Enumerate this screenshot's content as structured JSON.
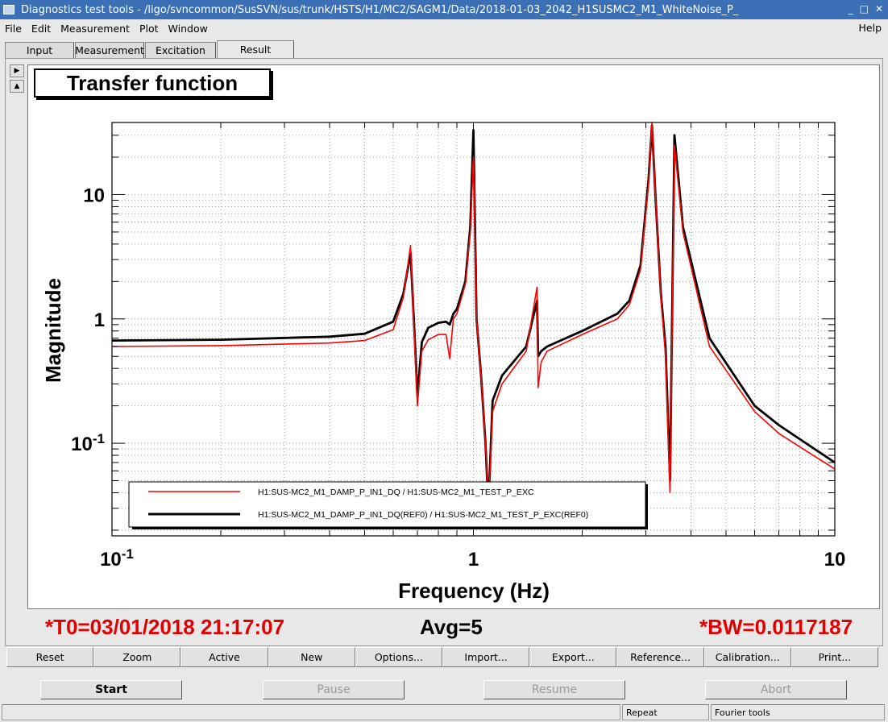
{
  "window": {
    "title": "Diagnostics test tools - /ligo/svncommon/SusSVN/sus/trunk/HSTS/H1/MC2/SAGM1/Data/2018-01-03_2042_H1SUSMC2_M1_WhiteNoise_P_",
    "controls": [
      "_",
      "□",
      "✕"
    ]
  },
  "menu": [
    "File",
    "Edit",
    "Measurement",
    "Plot",
    "Window"
  ],
  "menu_help": "Help",
  "tabs": [
    "Input",
    "Measurement",
    "Excitation",
    "Result"
  ],
  "active_tab": "Result",
  "pad_title": "Transfer function",
  "chart_data": {
    "type": "line",
    "title": "Transfer function",
    "xlabel": "Frequency (Hz)",
    "ylabel": "Magnitude",
    "xscale": "log",
    "yscale": "log",
    "xlim": [
      0.1,
      10
    ],
    "ylim": [
      0.018,
      38
    ],
    "x_ticks": [
      "10^-1",
      "1",
      "10"
    ],
    "y_ticks": [
      "10^-1",
      "1",
      "10"
    ],
    "grid": true,
    "legend_position": "bottom-left",
    "series": [
      {
        "name": "H1:SUS-MC2_M1_DAMP_P_IN1_DQ / H1:SUS-MC2_M1_TEST_P_EXC",
        "color": "#ff0000",
        "x": [
          0.1,
          0.2,
          0.4,
          0.5,
          0.6,
          0.64,
          0.67,
          0.69,
          0.7,
          0.72,
          0.75,
          0.8,
          0.84,
          0.86,
          0.88,
          0.9,
          0.95,
          0.98,
          1.0,
          1.02,
          1.05,
          1.08,
          1.1,
          1.13,
          1.2,
          1.4,
          1.5,
          1.51,
          1.54,
          1.6,
          2.0,
          2.5,
          2.7,
          2.9,
          3.05,
          3.12,
          3.2,
          3.3,
          3.4,
          3.5,
          3.6,
          3.8,
          4.5,
          6.0,
          7.0,
          10.0
        ],
        "y": [
          0.6,
          0.61,
          0.64,
          0.67,
          0.82,
          1.5,
          3.9,
          0.5,
          0.2,
          0.55,
          0.68,
          0.75,
          0.75,
          0.48,
          1.0,
          1.1,
          1.9,
          5.0,
          20.0,
          1.0,
          0.35,
          0.1,
          0.03,
          0.18,
          0.3,
          0.55,
          1.8,
          0.28,
          0.45,
          0.55,
          0.75,
          1.0,
          1.3,
          2.5,
          12.0,
          38.0,
          8.0,
          1.5,
          0.5,
          0.04,
          25.0,
          5.0,
          0.6,
          0.18,
          0.12,
          0.062
        ]
      },
      {
        "name": "H1:SUS-MC2_M1_DAMP_P_IN1_DQ(REF0) / H1:SUS-MC2_M1_TEST_P_EXC(REF0)",
        "color": "#000000",
        "x": [
          0.1,
          0.2,
          0.4,
          0.5,
          0.6,
          0.64,
          0.67,
          0.69,
          0.7,
          0.72,
          0.75,
          0.8,
          0.84,
          0.86,
          0.88,
          0.9,
          0.95,
          0.98,
          1.0,
          1.02,
          1.05,
          1.08,
          1.1,
          1.13,
          1.2,
          1.4,
          1.5,
          1.51,
          1.54,
          1.6,
          2.0,
          2.5,
          2.7,
          2.9,
          3.05,
          3.12,
          3.2,
          3.3,
          3.4,
          3.5,
          3.6,
          3.8,
          4.5,
          6.0,
          7.0,
          10.0
        ],
        "y": [
          0.67,
          0.68,
          0.72,
          0.76,
          0.95,
          1.6,
          3.4,
          0.6,
          0.24,
          0.65,
          0.85,
          0.93,
          0.95,
          0.9,
          1.1,
          1.2,
          2.0,
          5.5,
          33.0,
          1.0,
          0.35,
          0.1,
          0.03,
          0.22,
          0.35,
          0.6,
          1.4,
          0.5,
          0.55,
          0.6,
          0.8,
          1.1,
          1.4,
          2.7,
          13.0,
          36.0,
          8.0,
          1.6,
          0.6,
          0.05,
          30.0,
          5.5,
          0.7,
          0.2,
          0.14,
          0.07
        ]
      }
    ]
  },
  "status": {
    "t0": "*T0=03/01/2018 21:17:07",
    "avg": "Avg=5",
    "bw": "*BW=0.0117187"
  },
  "toolbar": [
    "Reset",
    "Zoom",
    "Active",
    "New",
    "Options...",
    "Import...",
    "Export...",
    "Reference...",
    "Calibration...",
    "Print..."
  ],
  "actions": {
    "start": "Start",
    "pause": "Pause",
    "resume": "Resume",
    "abort": "Abort"
  },
  "statusbar": {
    "mode": "Repeat",
    "tool": "Fourier tools"
  }
}
